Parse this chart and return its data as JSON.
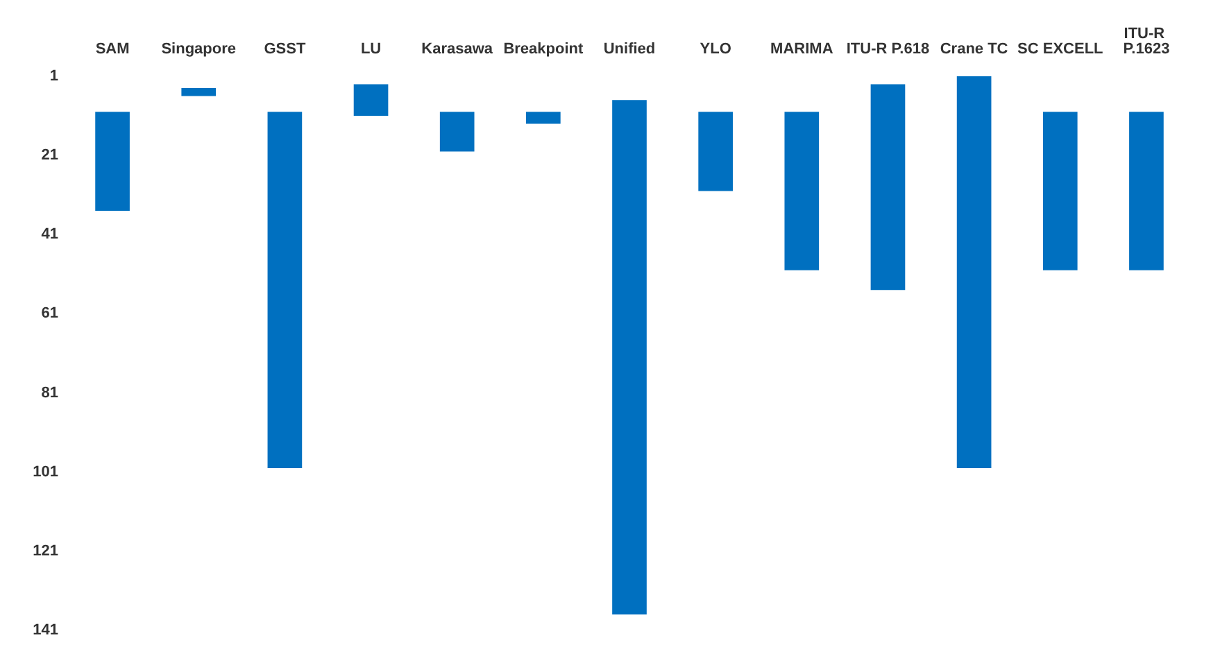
{
  "chart_data": {
    "type": "bar",
    "categories": [
      "SAM",
      "Singapore",
      "GSST",
      "LU",
      "Karasawa",
      "Breakpoint",
      "Unified",
      "YLO",
      "MARIMA",
      "ITU-R P.618",
      "Crane TC",
      "SC EXCELL",
      "ITU-R P.1623"
    ],
    "base": [
      10,
      4,
      10,
      3,
      10,
      10,
      7,
      10,
      10,
      3,
      1,
      10,
      10
    ],
    "values": [
      25,
      2,
      90,
      8,
      10,
      3,
      130,
      20,
      40,
      52,
      99,
      40,
      40
    ],
    "color": "#0070c0",
    "ylim": [
      141,
      1
    ],
    "yticks": [
      1,
      21,
      41,
      61,
      81,
      101,
      121,
      141
    ],
    "grid": false
  }
}
